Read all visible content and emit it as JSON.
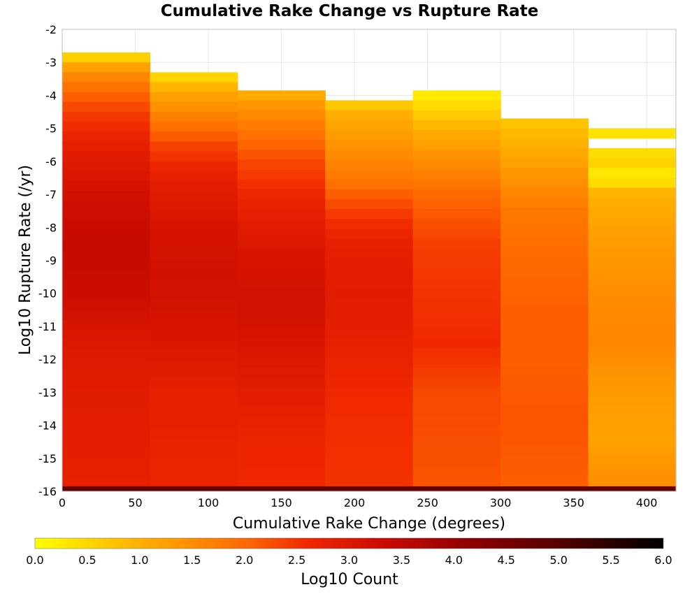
{
  "chart_data": {
    "type": "heatmap",
    "title": "Cumulative Rake Change vs Rupture Rate",
    "xlabel": "Cumulative Rake Change (degrees)",
    "ylabel": "Log10 Rupture Rate (/yr)",
    "xlim": [
      0,
      420
    ],
    "ylim": [
      -16,
      -2
    ],
    "x_ticks": [
      0,
      50,
      100,
      150,
      200,
      250,
      300,
      350,
      400
    ],
    "y_ticks": [
      -2,
      -3,
      -4,
      -5,
      -6,
      -7,
      -8,
      -9,
      -10,
      -11,
      -12,
      -13,
      -14,
      -15,
      -16
    ],
    "grid": true,
    "x_bins": [
      {
        "x0": 0,
        "x1": 60,
        "top": -2.7,
        "gaps": []
      },
      {
        "x0": 60,
        "x1": 120,
        "top": -3.3,
        "gaps": []
      },
      {
        "x0": 120,
        "x1": 180,
        "top": -3.85,
        "gaps": []
      },
      {
        "x0": 180,
        "x1": 240,
        "top": -4.15,
        "gaps": []
      },
      {
        "x0": 240,
        "x1": 300,
        "top": -3.85,
        "gaps": []
      },
      {
        "x0": 300,
        "x1": 360,
        "top": -4.7,
        "gaps": []
      },
      {
        "x0": 360,
        "x1": 420,
        "top": -5.0,
        "gaps": [
          [
            -5.55,
            -5.3
          ]
        ]
      }
    ],
    "y_bin_size": 0.3,
    "bottom_row": {
      "y0": -16,
      "y1": -15.85,
      "value": 4.8
    },
    "value_profiles": [
      [
        [
          -2.7,
          0.2
        ],
        [
          -3.0,
          1.0
        ],
        [
          -3.6,
          1.8
        ],
        [
          -4.5,
          2.4
        ],
        [
          -5.5,
          2.8
        ],
        [
          -7.0,
          3.2
        ],
        [
          -8.5,
          3.4
        ],
        [
          -10.0,
          3.3
        ],
        [
          -11.5,
          3.0
        ],
        [
          -13.0,
          2.9
        ],
        [
          -15.8,
          2.8
        ]
      ],
      [
        [
          -3.3,
          0.3
        ],
        [
          -3.6,
          0.8
        ],
        [
          -4.0,
          1.2
        ],
        [
          -4.8,
          1.8
        ],
        [
          -5.6,
          2.4
        ],
        [
          -6.5,
          2.8
        ],
        [
          -8.0,
          3.1
        ],
        [
          -9.5,
          3.2
        ],
        [
          -11.0,
          3.1
        ],
        [
          -13.0,
          2.8
        ],
        [
          -15.8,
          2.7
        ]
      ],
      [
        [
          -3.85,
          0.9
        ],
        [
          -4.2,
          1.3
        ],
        [
          -5.0,
          1.8
        ],
        [
          -6.0,
          2.3
        ],
        [
          -7.5,
          2.8
        ],
        [
          -9.0,
          3.1
        ],
        [
          -10.5,
          3.2
        ],
        [
          -12.0,
          3.0
        ],
        [
          -13.5,
          2.8
        ],
        [
          -15.8,
          2.6
        ]
      ],
      [
        [
          -4.15,
          0.5
        ],
        [
          -4.5,
          1.0
        ],
        [
          -5.5,
          1.4
        ],
        [
          -6.5,
          1.8
        ],
        [
          -7.5,
          2.4
        ],
        [
          -8.5,
          2.8
        ],
        [
          -10.0,
          2.9
        ],
        [
          -11.5,
          2.8
        ],
        [
          -13.0,
          2.6
        ],
        [
          -15.8,
          2.5
        ]
      ],
      [
        [
          -3.85,
          0.2
        ],
        [
          -4.4,
          0.5
        ],
        [
          -5.0,
          1.0
        ],
        [
          -6.0,
          1.5
        ],
        [
          -7.0,
          2.0
        ],
        [
          -8.5,
          2.4
        ],
        [
          -10.0,
          2.5
        ],
        [
          -11.5,
          2.6
        ],
        [
          -13.0,
          2.3
        ],
        [
          -15.8,
          2.2
        ]
      ],
      [
        [
          -4.7,
          0.7
        ],
        [
          -5.5,
          1.0
        ],
        [
          -6.5,
          1.4
        ],
        [
          -7.5,
          1.8
        ],
        [
          -9.0,
          2.0
        ],
        [
          -10.5,
          2.1
        ],
        [
          -12.0,
          2.1
        ],
        [
          -14.0,
          2.2
        ],
        [
          -15.8,
          2.1
        ]
      ],
      [
        [
          -5.0,
          0.4
        ],
        [
          -5.55,
          0.3
        ],
        [
          -6.0,
          0.6
        ],
        [
          -6.5,
          0.2
        ],
        [
          -7.0,
          1.0
        ],
        [
          -8.5,
          1.3
        ],
        [
          -10.0,
          1.5
        ],
        [
          -11.5,
          1.6
        ],
        [
          -13.0,
          1.3
        ],
        [
          -14.5,
          1.2
        ],
        [
          -15.8,
          1.5
        ]
      ]
    ],
    "colorbar": {
      "label": "Log10 Count",
      "min": 0.0,
      "max": 6.0,
      "ticks": [
        "0.0",
        "0.5",
        "1.0",
        "1.5",
        "2.0",
        "2.5",
        "3.0",
        "3.5",
        "4.0",
        "4.5",
        "5.0",
        "5.5",
        "6.0"
      ],
      "stops": [
        {
          "v": 0.0,
          "color": "#ffff00"
        },
        {
          "v": 1.0,
          "color": "#ffb000"
        },
        {
          "v": 2.0,
          "color": "#ff6a00"
        },
        {
          "v": 2.6,
          "color": "#f02800"
        },
        {
          "v": 3.3,
          "color": "#cc0c00"
        },
        {
          "v": 4.2,
          "color": "#8c0000"
        },
        {
          "v": 5.0,
          "color": "#550000"
        },
        {
          "v": 6.0,
          "color": "#000000"
        }
      ]
    }
  }
}
